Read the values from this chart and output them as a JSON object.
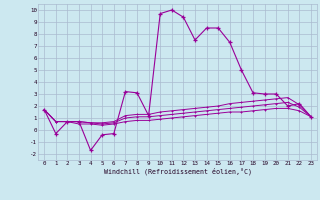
{
  "xlabel": "Windchill (Refroidissement éolien,°C)",
  "x": [
    0,
    1,
    2,
    3,
    4,
    5,
    6,
    7,
    8,
    9,
    10,
    11,
    12,
    13,
    14,
    15,
    16,
    17,
    18,
    19,
    20,
    21,
    22,
    23
  ],
  "line1": [
    1.7,
    -0.3,
    0.7,
    0.7,
    -1.7,
    -0.4,
    -0.3,
    3.2,
    3.1,
    1.2,
    9.7,
    10.0,
    9.4,
    7.5,
    8.5,
    8.5,
    7.3,
    5.0,
    3.1,
    3.0,
    3.0,
    2.0,
    2.2,
    1.1
  ],
  "line2": [
    1.7,
    0.7,
    0.7,
    0.7,
    0.6,
    0.6,
    0.7,
    1.2,
    1.3,
    1.3,
    1.5,
    1.6,
    1.7,
    1.8,
    1.9,
    2.0,
    2.2,
    2.3,
    2.4,
    2.5,
    2.6,
    2.7,
    2.1,
    1.1
  ],
  "line3": [
    1.7,
    0.7,
    0.7,
    0.7,
    0.6,
    0.5,
    0.6,
    1.0,
    1.1,
    1.1,
    1.2,
    1.3,
    1.4,
    1.5,
    1.6,
    1.7,
    1.8,
    1.9,
    2.0,
    2.1,
    2.2,
    2.3,
    1.9,
    1.1
  ],
  "line4": [
    1.7,
    0.7,
    0.7,
    0.5,
    0.5,
    0.4,
    0.5,
    0.7,
    0.8,
    0.8,
    0.9,
    1.0,
    1.1,
    1.2,
    1.3,
    1.4,
    1.5,
    1.5,
    1.6,
    1.7,
    1.8,
    1.8,
    1.6,
    1.1
  ],
  "line_color": "#990099",
  "bg_color": "#cce8f0",
  "grid_color": "#aabbd0",
  "ylim": [
    -2.5,
    10.5
  ],
  "xlim": [
    -0.5,
    23.5
  ],
  "yticks": [
    -2,
    -1,
    0,
    1,
    2,
    3,
    4,
    5,
    6,
    7,
    8,
    9,
    10
  ],
  "xticks": [
    0,
    1,
    2,
    3,
    4,
    5,
    6,
    7,
    8,
    9,
    10,
    11,
    12,
    13,
    14,
    15,
    16,
    17,
    18,
    19,
    20,
    21,
    22,
    23
  ]
}
